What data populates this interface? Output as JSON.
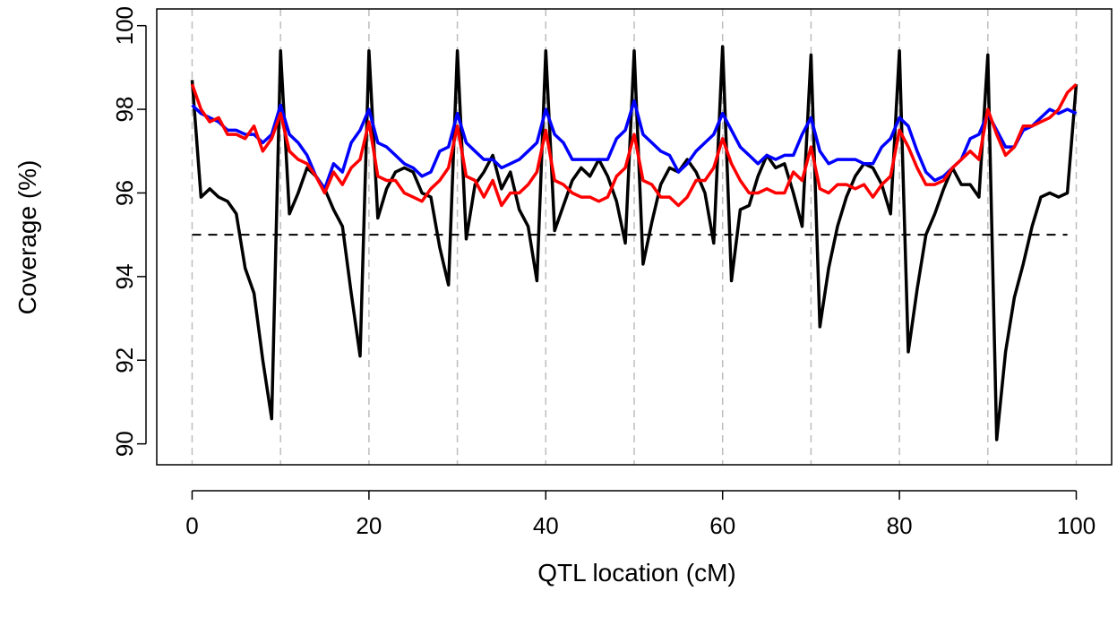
{
  "chart_data": {
    "type": "line",
    "title": "",
    "xlabel": "QTL location (cM)",
    "ylabel": "Coverage (%)",
    "xlim": [
      -4,
      104
    ],
    "ylim": [
      89.5,
      100.4
    ],
    "x_ticks": [
      0,
      20,
      40,
      60,
      80,
      100
    ],
    "y_ticks": [
      90,
      92,
      94,
      96,
      98,
      100
    ],
    "grid": "vertical dashed lines every 10 cM",
    "vgrid_x": [
      0,
      10,
      20,
      30,
      40,
      50,
      60,
      70,
      80,
      90,
      100
    ],
    "reference_line": {
      "y": 95,
      "color": "#000000",
      "style": "dashed"
    },
    "x": [
      0,
      1,
      2,
      3,
      4,
      5,
      6,
      7,
      8,
      9,
      10,
      11,
      12,
      13,
      14,
      15,
      16,
      17,
      18,
      19,
      20,
      21,
      22,
      23,
      24,
      25,
      26,
      27,
      28,
      29,
      30,
      31,
      32,
      33,
      34,
      35,
      36,
      37,
      38,
      39,
      40,
      41,
      42,
      43,
      44,
      45,
      46,
      47,
      48,
      49,
      50,
      51,
      52,
      53,
      54,
      55,
      56,
      57,
      58,
      59,
      60,
      61,
      62,
      63,
      64,
      65,
      66,
      67,
      68,
      69,
      70,
      71,
      72,
      73,
      74,
      75,
      76,
      77,
      78,
      79,
      80,
      81,
      82,
      83,
      84,
      85,
      86,
      87,
      88,
      89,
      90,
      91,
      92,
      93,
      94,
      95,
      96,
      97,
      98,
      99,
      100
    ],
    "series": [
      {
        "color": "#000000",
        "values": [
          98.7,
          95.9,
          96.1,
          95.9,
          95.8,
          95.5,
          94.2,
          93.6,
          92.0,
          90.6,
          99.4,
          95.5,
          96.0,
          96.6,
          96.4,
          96.1,
          95.6,
          95.2,
          93.6,
          92.1,
          99.4,
          95.4,
          96.1,
          96.5,
          96.6,
          96.5,
          96.0,
          95.9,
          94.7,
          93.8,
          99.4,
          94.9,
          96.2,
          96.5,
          96.9,
          96.1,
          96.5,
          95.6,
          95.2,
          93.9,
          99.4,
          95.1,
          95.7,
          96.3,
          96.6,
          96.4,
          96.8,
          96.4,
          95.8,
          94.8,
          99.4,
          94.3,
          95.3,
          96.2,
          96.6,
          96.5,
          96.8,
          96.5,
          96.0,
          94.8,
          99.5,
          93.9,
          95.6,
          95.7,
          96.4,
          96.9,
          96.6,
          96.7,
          96.0,
          95.2,
          99.3,
          92.8,
          94.2,
          95.2,
          95.9,
          96.4,
          96.7,
          96.6,
          96.2,
          95.5,
          99.4,
          92.2,
          93.7,
          95.0,
          95.5,
          96.1,
          96.6,
          96.2,
          96.2,
          95.9,
          99.3,
          90.1,
          92.2,
          93.5,
          94.3,
          95.2,
          95.9,
          96.0,
          95.9,
          96.0,
          98.6
        ]
      },
      {
        "color": "#0000ff",
        "values": [
          98.1,
          97.9,
          97.8,
          97.7,
          97.5,
          97.5,
          97.4,
          97.4,
          97.2,
          97.4,
          98.1,
          97.4,
          97.2,
          96.9,
          96.4,
          96.1,
          96.7,
          96.5,
          97.2,
          97.5,
          98.0,
          97.2,
          97.1,
          96.9,
          96.7,
          96.6,
          96.4,
          96.5,
          97.0,
          97.1,
          97.9,
          97.2,
          97.0,
          96.8,
          96.8,
          96.6,
          96.7,
          96.8,
          97.0,
          97.2,
          98.0,
          97.4,
          97.2,
          96.8,
          96.8,
          96.8,
          96.8,
          96.8,
          97.3,
          97.5,
          98.2,
          97.4,
          97.2,
          97.0,
          96.9,
          96.5,
          96.7,
          97.0,
          97.2,
          97.4,
          97.9,
          97.5,
          97.1,
          96.9,
          96.7,
          96.9,
          96.8,
          96.9,
          96.9,
          97.4,
          97.8,
          97.0,
          96.7,
          96.8,
          96.8,
          96.8,
          96.7,
          96.7,
          97.1,
          97.3,
          97.8,
          97.6,
          97.0,
          96.5,
          96.3,
          96.4,
          96.6,
          96.8,
          97.3,
          97.4,
          97.9,
          97.5,
          97.1,
          97.1,
          97.5,
          97.6,
          97.8,
          98.0,
          97.9,
          98.0,
          97.9
        ]
      },
      {
        "color": "#ff0000",
        "values": [
          98.6,
          98.0,
          97.7,
          97.8,
          97.4,
          97.4,
          97.3,
          97.6,
          97.0,
          97.3,
          97.9,
          97.0,
          96.8,
          96.7,
          96.4,
          96.0,
          96.5,
          96.2,
          96.6,
          96.8,
          97.7,
          96.4,
          96.3,
          96.3,
          96.0,
          95.9,
          95.8,
          96.1,
          96.3,
          96.6,
          97.6,
          96.4,
          96.3,
          95.9,
          96.3,
          95.7,
          96.0,
          96.0,
          96.2,
          96.5,
          97.5,
          96.3,
          96.2,
          96.0,
          95.9,
          95.9,
          95.8,
          95.9,
          96.4,
          96.6,
          97.4,
          96.3,
          96.2,
          95.9,
          95.9,
          95.7,
          95.9,
          96.3,
          96.3,
          96.6,
          97.3,
          96.7,
          96.3,
          96.0,
          96.0,
          96.1,
          96.0,
          96.0,
          96.5,
          96.3,
          97.1,
          96.1,
          96.0,
          96.2,
          96.2,
          96.1,
          96.2,
          95.9,
          96.2,
          96.4,
          97.5,
          97.1,
          96.6,
          96.2,
          96.2,
          96.3,
          96.6,
          96.8,
          97.0,
          96.8,
          98.0,
          97.4,
          96.9,
          97.1,
          97.6,
          97.6,
          97.7,
          97.8,
          98.0,
          98.4,
          98.6
        ]
      }
    ]
  }
}
